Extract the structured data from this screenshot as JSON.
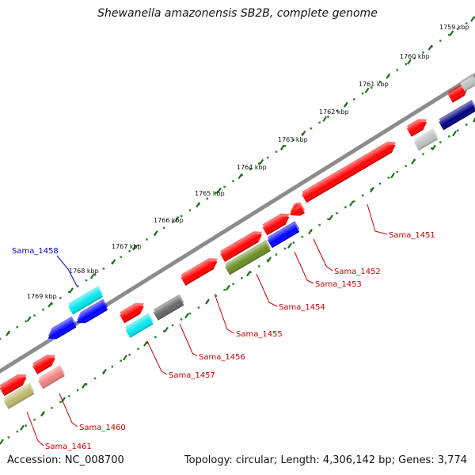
{
  "title": "Shewanella amazonensis SB2B, complete genome",
  "accession": "Accession: NC_008700",
  "topology": "Topology: circular; Length: 4,306,142 bp; Genes: 3,774",
  "colors": {
    "backbone": "#8c8c8c",
    "tick_dots": "#2e8b2e",
    "tick_major": "#1f6f1f",
    "gene_label": "#cc0000",
    "selected_label": "#0000cc"
  },
  "scale_labels": [
    "1759 kbp",
    "1760 kbp",
    "1761 kbp",
    "1762 kbp",
    "1763 kbp",
    "1764 kbp",
    "1765 kbp",
    "1766 kbp",
    "1767 kbp",
    "1768 kbp",
    "1769 kbp"
  ],
  "genes": [
    {
      "label": "Sama_1451",
      "color": "#ff0000"
    },
    {
      "label": "Sama_1452",
      "color": "#ff0000"
    },
    {
      "label": "Sama_1453",
      "color": "#0000ff"
    },
    {
      "label": "Sama_1454",
      "color": "#6b8e23"
    },
    {
      "label": "Sama_1455",
      "color": "#ff0000"
    },
    {
      "label": "Sama_1456",
      "color": "#666666"
    },
    {
      "label": "Sama_1457",
      "color": "#00e5ee"
    },
    {
      "label": "Sama_1458",
      "color": "#00e5ee"
    },
    {
      "label": "Sama_1460",
      "color": "#f08080"
    },
    {
      "label": "Sama_1461",
      "color": "#bdb76b"
    }
  ],
  "unlabeled_features": [
    {
      "color": "#ff0000"
    },
    {
      "color": "#ff0000"
    },
    {
      "color": "#ff0000"
    },
    {
      "color": "#ff0000"
    },
    {
      "color": "#ff0000"
    },
    {
      "color": "#ff0000"
    },
    {
      "color": "#ff0000"
    },
    {
      "color": "#ff0000"
    },
    {
      "color": "#0000ff"
    },
    {
      "color": "#0000ff"
    },
    {
      "color": "#000080"
    },
    {
      "color": "#c0c0c0"
    },
    {
      "color": "#c0c0c0"
    }
  ]
}
